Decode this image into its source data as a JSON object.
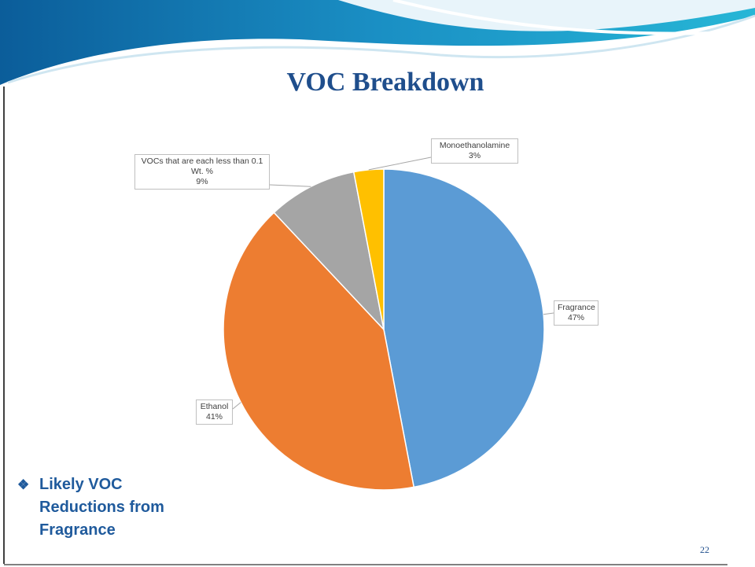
{
  "chart_data": {
    "type": "pie",
    "title": "VOC Breakdown",
    "categories": [
      "Fragrance",
      "Ethanol",
      "VOCs that are each less than 0.1 Wt. %",
      "Monoethanolamine"
    ],
    "values": [
      47,
      41,
      9,
      3
    ],
    "value_labels": [
      "47%",
      "41%",
      "9%",
      "3%"
    ],
    "colors": [
      "#5b9bd5",
      "#ed7d31",
      "#a5a5a5",
      "#ffc000"
    ]
  },
  "bullet": "Likely VOC Reductions from Fragrance",
  "page_number": "22"
}
